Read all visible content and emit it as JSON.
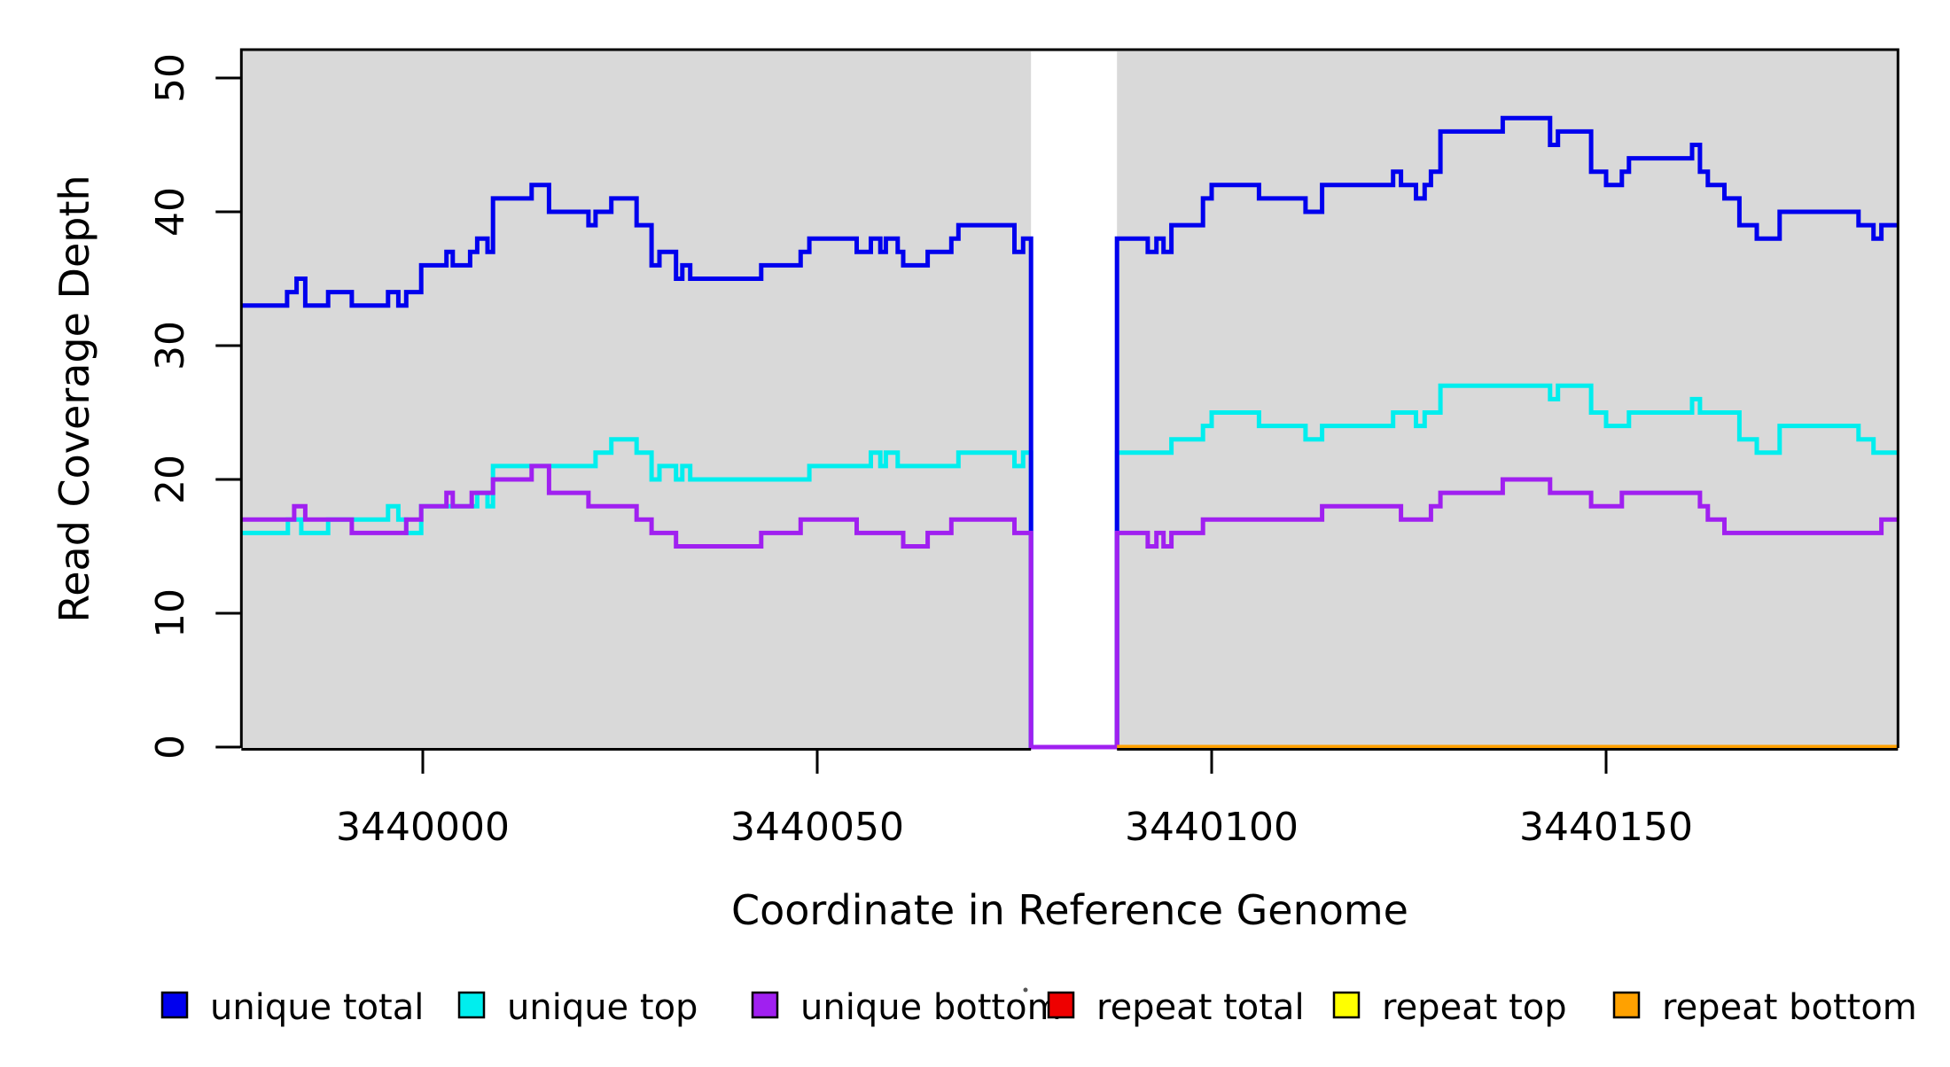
{
  "chart_data": {
    "type": "line",
    "subtype": "step",
    "title": "",
    "xlabel": "Coordinate in Reference Genome",
    "ylabel": "Read Coverage Depth",
    "xlim": [
      3439977,
      3440187
    ],
    "ylim": [
      0,
      52.2
    ],
    "x_ticks": [
      "3440000",
      "3440050",
      "3440100",
      "3440150"
    ],
    "x_tick_values": [
      3440000,
      3440050,
      3440100,
      3440150
    ],
    "y_ticks": [
      "0",
      "10",
      "20",
      "30",
      "40",
      "50"
    ],
    "y_tick_values": [
      0,
      10,
      20,
      30,
      40,
      50
    ],
    "grid": false,
    "panel_bg": "#d9d9d9",
    "border_color": "#000000",
    "no_data_region": {
      "from": 3440077.1,
      "to": 3440088,
      "fill": "#ffffff"
    },
    "legend_position": "bottom",
    "series": [
      {
        "name": "unique total",
        "color": "#0000ee",
        "steps": [
          [
            3439977,
            33
          ],
          [
            3439982.8,
            34
          ],
          [
            3439984,
            35
          ],
          [
            3439985.1,
            33
          ],
          [
            3439988,
            34
          ],
          [
            3439991,
            33
          ],
          [
            3439995.6,
            34
          ],
          [
            3439996.9,
            33
          ],
          [
            3439997.9,
            34
          ],
          [
            3439999.8,
            36
          ],
          [
            3440003,
            37
          ],
          [
            3440003.8,
            36
          ],
          [
            3440006,
            37
          ],
          [
            3440006.9,
            38
          ],
          [
            3440008.2,
            37
          ],
          [
            3440008.9,
            41
          ],
          [
            3440013.8,
            42
          ],
          [
            3440016,
            40
          ],
          [
            3440021,
            39
          ],
          [
            3440021.9,
            40
          ],
          [
            3440023.9,
            41
          ],
          [
            3440027.1,
            39
          ],
          [
            3440029,
            36
          ],
          [
            3440030,
            37
          ],
          [
            3440032.1,
            35
          ],
          [
            3440032.9,
            36
          ],
          [
            3440033.9,
            35
          ],
          [
            3440042.9,
            36
          ],
          [
            3440047.9,
            37
          ],
          [
            3440049,
            38
          ],
          [
            3440055,
            37
          ],
          [
            3440056.8,
            38
          ],
          [
            3440058,
            37
          ],
          [
            3440058.7,
            38
          ],
          [
            3440060.2,
            37
          ],
          [
            3440060.9,
            36
          ],
          [
            3440064,
            37
          ],
          [
            3440067,
            38
          ],
          [
            3440067.9,
            39
          ],
          [
            3440075,
            37
          ],
          [
            3440076.1,
            38
          ],
          [
            3440077.1,
            0
          ],
          [
            3440088,
            38
          ],
          [
            3440091.9,
            37
          ],
          [
            3440093,
            38
          ],
          [
            3440093.9,
            37
          ],
          [
            3440094.9,
            39
          ],
          [
            3440098.9,
            41
          ],
          [
            3440100,
            42
          ],
          [
            3440106,
            41
          ],
          [
            3440111.9,
            40
          ],
          [
            3440114,
            42
          ],
          [
            3440123,
            43
          ],
          [
            3440124,
            42
          ],
          [
            3440125.9,
            41
          ],
          [
            3440127,
            42
          ],
          [
            3440127.8,
            43
          ],
          [
            3440129,
            46
          ],
          [
            3440136.9,
            47
          ],
          [
            3440142.9,
            45
          ],
          [
            3440143.9,
            46
          ],
          [
            3440148.1,
            43
          ],
          [
            3440150,
            42
          ],
          [
            3440152,
            43
          ],
          [
            3440152.9,
            44
          ],
          [
            3440160.9,
            45
          ],
          [
            3440161.9,
            43
          ],
          [
            3440162.9,
            42
          ],
          [
            3440165,
            41
          ],
          [
            3440166.9,
            39
          ],
          [
            3440169.1,
            38
          ],
          [
            3440172,
            40
          ],
          [
            3440182,
            39
          ],
          [
            3440183.9,
            38
          ],
          [
            3440184.9,
            39
          ]
        ]
      },
      {
        "name": "unique top",
        "color": "#00eeee",
        "steps": [
          [
            3439977,
            16
          ],
          [
            3439982.9,
            17
          ],
          [
            3439984.6,
            16
          ],
          [
            3439988,
            17
          ],
          [
            3439995.6,
            18
          ],
          [
            3439996.9,
            17
          ],
          [
            3439997.9,
            16
          ],
          [
            3439999.8,
            18
          ],
          [
            3440006.9,
            19
          ],
          [
            3440008.2,
            18
          ],
          [
            3440008.9,
            21
          ],
          [
            3440021.9,
            22
          ],
          [
            3440023.9,
            23
          ],
          [
            3440027.1,
            22
          ],
          [
            3440029,
            20
          ],
          [
            3440030,
            21
          ],
          [
            3440032.1,
            20
          ],
          [
            3440032.9,
            21
          ],
          [
            3440033.9,
            20
          ],
          [
            3440049,
            21
          ],
          [
            3440056.8,
            22
          ],
          [
            3440058,
            21
          ],
          [
            3440058.7,
            22
          ],
          [
            3440060.2,
            21
          ],
          [
            3440067.9,
            22
          ],
          [
            3440075,
            21
          ],
          [
            3440076.1,
            22
          ],
          [
            3440077.1,
            0
          ],
          [
            3440088,
            22
          ],
          [
            3440094.9,
            23
          ],
          [
            3440098.9,
            24
          ],
          [
            3440100,
            25
          ],
          [
            3440106,
            24
          ],
          [
            3440111.9,
            23
          ],
          [
            3440114,
            24
          ],
          [
            3440123,
            25
          ],
          [
            3440125.9,
            24
          ],
          [
            3440127,
            25
          ],
          [
            3440129,
            27
          ],
          [
            3440142.9,
            26
          ],
          [
            3440143.9,
            27
          ],
          [
            3440148.1,
            25
          ],
          [
            3440150,
            24
          ],
          [
            3440152.9,
            25
          ],
          [
            3440160.9,
            26
          ],
          [
            3440161.9,
            25
          ],
          [
            3440166.9,
            23
          ],
          [
            3440169.1,
            22
          ],
          [
            3440172,
            24
          ],
          [
            3440182,
            23
          ],
          [
            3440183.9,
            22
          ]
        ]
      },
      {
        "name": "unique bottom",
        "color": "#a020f0",
        "steps": [
          [
            3439977,
            17
          ],
          [
            3439983.7,
            18
          ],
          [
            3439985.1,
            17
          ],
          [
            3439991,
            16
          ],
          [
            3439997.9,
            17
          ],
          [
            3439999.8,
            18
          ],
          [
            3440003,
            19
          ],
          [
            3440003.8,
            18
          ],
          [
            3440006.2,
            19
          ],
          [
            3440008.9,
            20
          ],
          [
            3440013.8,
            21
          ],
          [
            3440016,
            19
          ],
          [
            3440021,
            18
          ],
          [
            3440027.1,
            17
          ],
          [
            3440029,
            16
          ],
          [
            3440032.1,
            15
          ],
          [
            3440042.9,
            16
          ],
          [
            3440047.9,
            17
          ],
          [
            3440055,
            16
          ],
          [
            3440060.9,
            15
          ],
          [
            3440064,
            16
          ],
          [
            3440067,
            17
          ],
          [
            3440075,
            16
          ],
          [
            3440077.1,
            0
          ],
          [
            3440088,
            16
          ],
          [
            3440091.9,
            15
          ],
          [
            3440093,
            16
          ],
          [
            3440093.9,
            15
          ],
          [
            3440094.9,
            16
          ],
          [
            3440098.9,
            17
          ],
          [
            3440114,
            18
          ],
          [
            3440124,
            17
          ],
          [
            3440127.8,
            18
          ],
          [
            3440129,
            19
          ],
          [
            3440136.9,
            20
          ],
          [
            3440142.9,
            19
          ],
          [
            3440148.1,
            18
          ],
          [
            3440152,
            19
          ],
          [
            3440161.9,
            18
          ],
          [
            3440162.9,
            17
          ],
          [
            3440165,
            16
          ],
          [
            3440184.9,
            17
          ]
        ]
      },
      {
        "name": "repeat total",
        "color": "#ee0000",
        "steps": [
          [
            3439977,
            0
          ],
          [
            3440077.1,
            null
          ],
          [
            3440088,
            0
          ]
        ]
      },
      {
        "name": "repeat top",
        "color": "#ffff00",
        "steps": [
          [
            3439977,
            0
          ],
          [
            3440077.1,
            null
          ],
          [
            3440088,
            0
          ]
        ]
      },
      {
        "name": "repeat bottom",
        "color": "#ffa100",
        "steps": [
          [
            3439977,
            0
          ],
          [
            3440077.1,
            null
          ],
          [
            3440088,
            0
          ]
        ]
      }
    ],
    "legend": [
      {
        "label": "unique total",
        "color": "#0000ee"
      },
      {
        "label": "unique top",
        "color": "#00eeee"
      },
      {
        "label": "unique bottom",
        "color": "#a020f0"
      },
      {
        "label": "repeat total",
        "color": "#ee0000"
      },
      {
        "label": "repeat top",
        "color": "#ffff00"
      },
      {
        "label": "repeat bottom",
        "color": "#ffa100"
      }
    ]
  }
}
